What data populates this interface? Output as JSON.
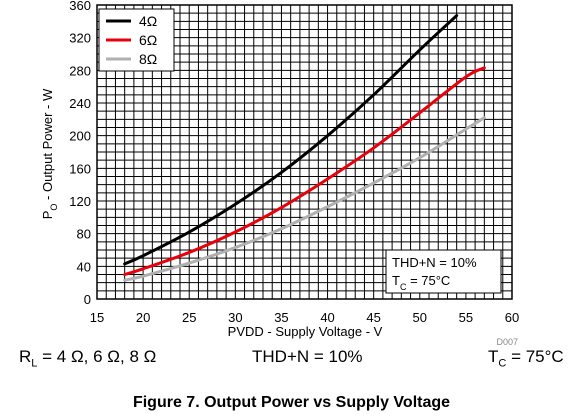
{
  "chart_data": {
    "type": "line",
    "xlabel": "PVDD - Supply Voltage - V",
    "ylabel": {
      "prefix": "P",
      "sub": "O",
      "rest": " - Output Power - W"
    },
    "xlim": [
      15,
      60
    ],
    "ylim": [
      0,
      360
    ],
    "x_ticks": [
      15,
      20,
      25,
      30,
      35,
      40,
      45,
      50,
      55,
      60
    ],
    "y_ticks": [
      0,
      40,
      80,
      120,
      160,
      200,
      240,
      280,
      320,
      360
    ],
    "grid": true,
    "legend_position": "top-left",
    "series": [
      {
        "name": "4Ω",
        "color": "#000000",
        "x": [
          18,
          20,
          25,
          30,
          35,
          40,
          45,
          50,
          54
        ],
        "y": [
          43,
          53,
          82,
          116,
          155,
          200,
          250,
          305,
          347
        ]
      },
      {
        "name": "6Ω",
        "color": "#e8000b",
        "x": [
          18,
          20,
          25,
          30,
          35,
          40,
          45,
          50,
          55,
          57
        ],
        "y": [
          30,
          37,
          57,
          82,
          112,
          147,
          185,
          228,
          272,
          283
        ]
      },
      {
        "name": "8Ω",
        "color": "#b0b0b0",
        "x": [
          18,
          20,
          25,
          30,
          35,
          40,
          45,
          50,
          55,
          57
        ],
        "y": [
          23,
          28,
          44,
          63,
          86,
          113,
          142,
          173,
          208,
          222
        ]
      }
    ],
    "annotation": {
      "line1": "THD+N = 10%",
      "line2_prefix": "T",
      "line2_sub": "C",
      "line2_rest": " = 75°C"
    },
    "code": "D007"
  },
  "conditions": {
    "rl_prefix": "R",
    "rl_sub": "L",
    "rl_rest": " = 4 Ω, 6 Ω, 8 Ω",
    "thd": "THD+N = 10%",
    "tc_prefix": "T",
    "tc_sub": "C",
    "tc_rest": " = 75°C"
  },
  "caption": "Figure 7. Output Power vs Supply Voltage"
}
